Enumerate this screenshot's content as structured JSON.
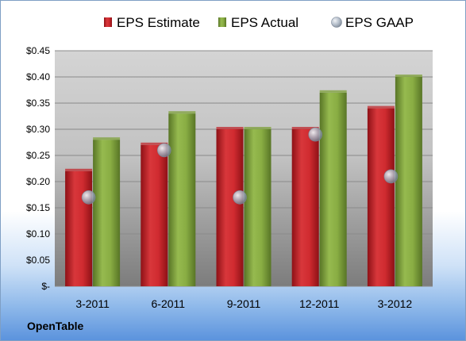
{
  "company": "OpenTable",
  "chart_data": {
    "type": "bar",
    "categories": [
      "3-2011",
      "6-2011",
      "9-2011",
      "12-2011",
      "3-2012"
    ],
    "series": [
      {
        "name": "EPS Estimate",
        "kind": "bar",
        "color": "#c0282d",
        "values": [
          0.22,
          0.27,
          0.3,
          0.3,
          0.34
        ]
      },
      {
        "name": "EPS Actual",
        "kind": "bar",
        "color": "#7da03a",
        "values": [
          0.28,
          0.33,
          0.3,
          0.37,
          0.4
        ]
      },
      {
        "name": "EPS GAAP",
        "kind": "marker",
        "color": "#a9b4c2",
        "values": [
          0.17,
          0.26,
          0.17,
          0.29,
          0.21
        ]
      }
    ],
    "y_ticks": [
      {
        "value": 0.45,
        "label": "$0.45"
      },
      {
        "value": 0.4,
        "label": "$0.40"
      },
      {
        "value": 0.35,
        "label": "$0.35"
      },
      {
        "value": 0.3,
        "label": "$0.30"
      },
      {
        "value": 0.25,
        "label": "$0.25"
      },
      {
        "value": 0.2,
        "label": "$0.20"
      },
      {
        "value": 0.15,
        "label": "$0.15"
      },
      {
        "value": 0.1,
        "label": "$0.10"
      },
      {
        "value": 0.05,
        "label": "$0.05"
      },
      {
        "value": 0.0,
        "label": "$-"
      }
    ],
    "ylim": [
      0,
      0.45
    ],
    "grid": true,
    "legend_position": "top"
  }
}
